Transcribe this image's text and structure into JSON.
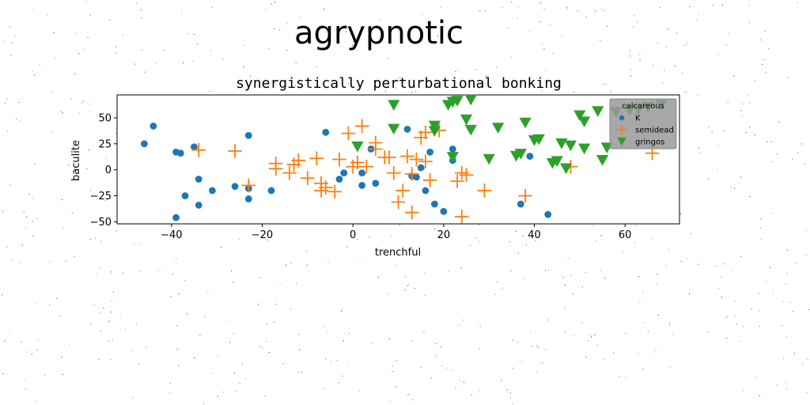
{
  "suptitle": "agrypnotic",
  "chart_data": {
    "type": "scatter",
    "title": "synergistically perturbational bonking",
    "xlabel": "trenchful",
    "ylabel": "baculite",
    "xlim": [
      -52,
      72
    ],
    "ylim": [
      -52,
      72
    ],
    "x_ticks": [
      -40,
      -20,
      0,
      20,
      40,
      60
    ],
    "y_ticks": [
      -50,
      -25,
      0,
      25,
      50
    ],
    "grid": false,
    "legend": {
      "title": "calcareous",
      "placement": "top-right"
    },
    "series": [
      {
        "name": "K",
        "color": "#1f77b4",
        "marker": "circle",
        "points": [
          [
            -46,
            25
          ],
          [
            -44,
            42
          ],
          [
            -39,
            17
          ],
          [
            -38,
            16
          ],
          [
            -37,
            -25
          ],
          [
            -35,
            22
          ],
          [
            -34,
            -9
          ],
          [
            -34,
            -34
          ],
          [
            -31,
            -20
          ],
          [
            -26,
            -16
          ],
          [
            -23,
            33
          ],
          [
            -23,
            -18
          ],
          [
            -23,
            -28
          ],
          [
            -18,
            -20
          ],
          [
            -6,
            36
          ],
          [
            -3,
            -9
          ],
          [
            -2,
            -3
          ],
          [
            2,
            -3
          ],
          [
            2,
            -15
          ],
          [
            4,
            20
          ],
          [
            5,
            -13
          ],
          [
            12,
            39
          ],
          [
            13,
            -6
          ],
          [
            14,
            -7
          ],
          [
            15,
            2
          ],
          [
            16,
            -20
          ],
          [
            17,
            17
          ],
          [
            18,
            -33
          ],
          [
            20,
            -40
          ],
          [
            22,
            20
          ],
          [
            22,
            9
          ],
          [
            37,
            -33
          ],
          [
            39,
            13
          ],
          [
            43,
            -43
          ],
          [
            -39,
            -46
          ]
        ]
      },
      {
        "name": "semidead",
        "color": "#ff7f0e",
        "marker": "plus",
        "points": [
          [
            -34,
            19
          ],
          [
            -26,
            18
          ],
          [
            -23,
            -15
          ],
          [
            -17,
            6
          ],
          [
            -17,
            1
          ],
          [
            -14,
            -3
          ],
          [
            -13,
            5
          ],
          [
            -12,
            9
          ],
          [
            -10,
            -8
          ],
          [
            -8,
            11
          ],
          [
            -7,
            -13
          ],
          [
            -7,
            -20
          ],
          [
            -6,
            -17
          ],
          [
            -4,
            -21
          ],
          [
            -3,
            10
          ],
          [
            -1,
            35
          ],
          [
            0,
            3
          ],
          [
            1,
            7
          ],
          [
            2,
            42
          ],
          [
            3,
            3
          ],
          [
            5,
            26
          ],
          [
            5,
            20
          ],
          [
            7,
            12
          ],
          [
            8,
            12
          ],
          [
            9,
            -3
          ],
          [
            10,
            -31
          ],
          [
            11,
            -20
          ],
          [
            12,
            13
          ],
          [
            13,
            -4
          ],
          [
            13,
            -41
          ],
          [
            14,
            10
          ],
          [
            15,
            31
          ],
          [
            16,
            8
          ],
          [
            16,
            36
          ],
          [
            17,
            -10
          ],
          [
            19,
            38
          ],
          [
            23,
            -11
          ],
          [
            24,
            -3
          ],
          [
            25,
            -5
          ],
          [
            24,
            -45
          ],
          [
            29,
            -20
          ],
          [
            38,
            -25
          ],
          [
            48,
            3
          ],
          [
            66,
            16
          ]
        ]
      },
      {
        "name": "gringos",
        "color": "#2ca02c",
        "marker": "triangle-down",
        "points": [
          [
            9,
            62
          ],
          [
            9,
            39
          ],
          [
            18,
            42
          ],
          [
            18,
            37
          ],
          [
            21,
            62
          ],
          [
            22,
            65
          ],
          [
            23,
            66
          ],
          [
            25,
            48
          ],
          [
            26,
            38
          ],
          [
            26,
            67
          ],
          [
            30,
            10
          ],
          [
            32,
            40
          ],
          [
            36,
            13
          ],
          [
            37,
            15
          ],
          [
            38,
            45
          ],
          [
            40,
            28
          ],
          [
            41,
            29
          ],
          [
            45,
            8
          ],
          [
            46,
            25
          ],
          [
            47,
            1
          ],
          [
            48,
            23
          ],
          [
            50,
            52
          ],
          [
            51,
            46
          ],
          [
            51,
            20
          ],
          [
            54,
            56
          ],
          [
            55,
            9
          ],
          [
            56,
            21
          ],
          [
            58,
            55
          ],
          [
            61,
            57
          ],
          [
            63,
            58
          ],
          [
            65,
            60
          ],
          [
            68,
            62
          ],
          [
            1,
            22
          ],
          [
            22,
            12
          ],
          [
            44,
            6
          ]
        ]
      }
    ]
  }
}
